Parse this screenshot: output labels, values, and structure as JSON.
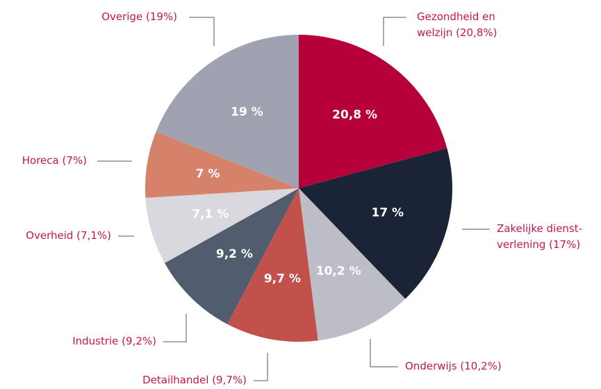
{
  "chart_data": {
    "type": "pie",
    "categories": [
      "Gezondheid en welzijn (20,8%)",
      "Zakelijke dienst-verlening (17%)",
      "Onderwijs (10,2%)",
      "Detailhandel (9,7%)",
      "Industrie (9,2%)",
      "Overheid (7,1%)",
      "Horeca (7%)",
      "Overige (19%)"
    ],
    "values": [
      20.8,
      17,
      10.2,
      9.7,
      9.2,
      7.1,
      7,
      19
    ],
    "value_labels": [
      "20,8 %",
      "17 %",
      "10,2 %",
      "9,7 %",
      "9,2 %",
      "7,1 %",
      "7 %",
      "19 %"
    ],
    "colors": [
      "#b5003a",
      "#1b2437",
      "#bcbdc6",
      "#c2514c",
      "#525c6f",
      "#d8d8de",
      "#d6826b",
      "#a1a2b1"
    ]
  }
}
